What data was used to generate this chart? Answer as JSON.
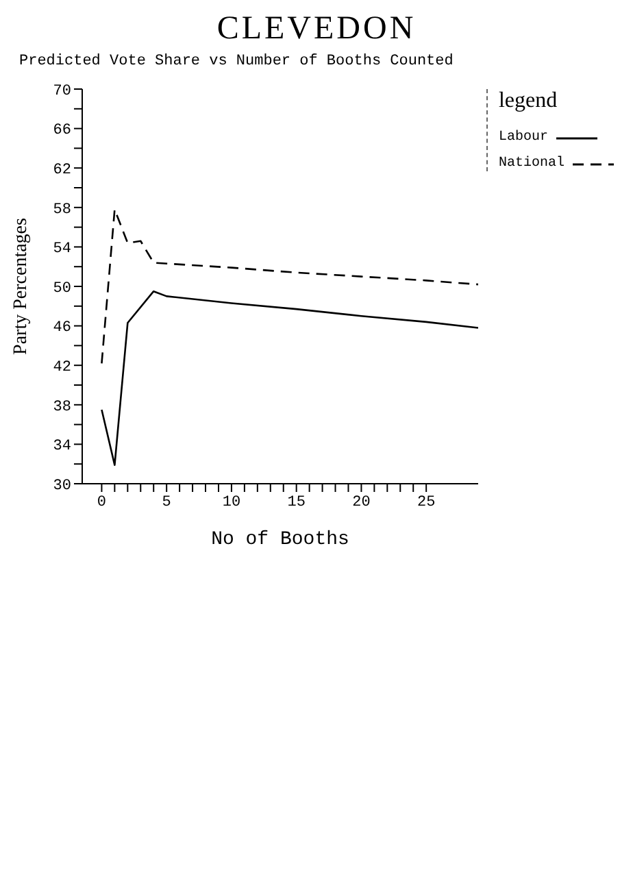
{
  "chart_data": {
    "type": "line",
    "title": "CLEVEDON",
    "subtitle": "Predicted Vote Share vs Number of Booths Counted",
    "xlabel": "No of Booths",
    "ylabel": "Party Percentages",
    "legend_title": "legend",
    "x": [
      0,
      1,
      2,
      4,
      5,
      10,
      15,
      20,
      25,
      29
    ],
    "series": [
      {
        "name": "Labour",
        "color": "#000000",
        "line_style": "solid",
        "values": [
          37.5,
          31.9,
          46.3,
          49.5,
          49.0,
          48.3,
          47.7,
          47.0,
          46.4,
          45.8
        ]
      },
      {
        "name": "National",
        "color": "#000000",
        "line_style": "dashed",
        "x": [
          0,
          1,
          2,
          3,
          4,
          10,
          15,
          20,
          25,
          29
        ],
        "values": [
          42.2,
          57.8,
          54.4,
          54.6,
          52.4,
          51.9,
          51.4,
          51.0,
          50.6,
          50.2
        ]
      }
    ],
    "xlim": [
      -1.5,
      29
    ],
    "xticks": [
      0,
      {
        "value": 1,
        "label": null
      },
      {
        "value": 2,
        "label": null
      },
      {
        "value": 3,
        "label": null
      },
      {
        "value": 4,
        "label": null
      },
      5,
      {
        "value": 6,
        "label": null
      },
      {
        "value": 7,
        "label": null
      },
      {
        "value": 8,
        "label": null
      },
      {
        "value": 9,
        "label": null
      },
      10,
      {
        "value": 11,
        "label": null
      },
      {
        "value": 12,
        "label": null
      },
      {
        "value": 13,
        "label": null
      },
      {
        "value": 14,
        "label": null
      },
      15,
      {
        "value": 16,
        "label": null
      },
      {
        "value": 17,
        "label": null
      },
      {
        "value": 18,
        "label": null
      },
      {
        "value": 19,
        "label": null
      },
      20,
      {
        "value": 21,
        "label": null
      },
      {
        "value": 22,
        "label": null
      },
      {
        "value": 23,
        "label": null
      },
      {
        "value": 24,
        "label": null
      },
      25
    ],
    "ylim": [
      30,
      70
    ],
    "yticks": [
      30,
      {
        "value": 32,
        "label": null
      },
      34,
      {
        "value": 36,
        "label": null
      },
      38,
      {
        "value": 40,
        "label": null
      },
      42,
      {
        "value": 44,
        "label": null
      },
      46,
      {
        "value": 48,
        "label": null
      },
      50,
      {
        "value": 52,
        "label": null
      },
      54,
      {
        "value": 56,
        "label": null
      },
      58,
      {
        "value": 60,
        "label": null
      },
      62,
      {
        "value": 64,
        "label": null
      },
      66,
      {
        "value": 68,
        "label": null
      },
      70
    ],
    "grid": false,
    "legend": "right",
    "marker": "none"
  }
}
